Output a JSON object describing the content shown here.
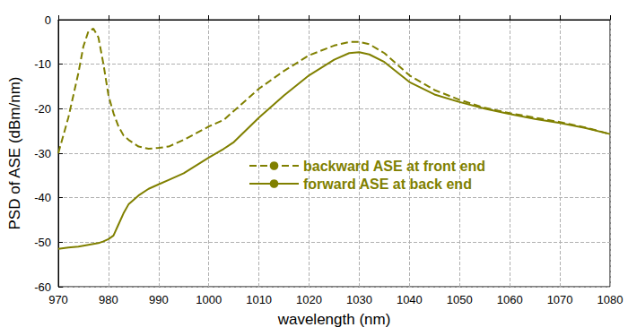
{
  "chart_data": {
    "type": "line",
    "x_label": "wavelength (nm)",
    "y_label": "PSD of ASE (dBm/nm)",
    "x": [
      970,
      972,
      974,
      975,
      976,
      977,
      978,
      979,
      980,
      981,
      982,
      983,
      984,
      986,
      988,
      990,
      992,
      995,
      1000,
      1003,
      1005,
      1010,
      1015,
      1020,
      1025,
      1028,
      1030,
      1032,
      1035,
      1040,
      1045,
      1050,
      1055,
      1060,
      1065,
      1070,
      1075,
      1080
    ],
    "series": [
      {
        "name": "backward ASE at front end",
        "color": "#808000",
        "line_style": "dashed",
        "values": [
          -30,
          -22,
          -12,
          -6,
          -2.6,
          -2,
          -4,
          -10,
          -17,
          -21,
          -24,
          -26,
          -27,
          -28.5,
          -29,
          -28.8,
          -28.5,
          -27,
          -24,
          -22.5,
          -20.5,
          -15.5,
          -11.5,
          -8,
          -5.8,
          -5,
          -5,
          -5.5,
          -7.5,
          -12.5,
          -15.8,
          -18,
          -19.8,
          -21,
          -22,
          -23,
          -24.2,
          -25.7
        ]
      },
      {
        "name": "forward ASE at back end",
        "color": "#808000",
        "line_style": "solid",
        "values": [
          -51.5,
          -51.2,
          -51,
          -50.8,
          -50.6,
          -50.4,
          -50.2,
          -49.8,
          -49.3,
          -48.5,
          -46,
          -43.5,
          -41.5,
          -39.5,
          -38,
          -37,
          -36,
          -34.5,
          -31,
          -29,
          -27.5,
          -22,
          -17,
          -12.5,
          -9,
          -7.5,
          -7.3,
          -7.8,
          -9.5,
          -14,
          -16.8,
          -18.5,
          -20,
          -21.2,
          -22.3,
          -23.2,
          -24.3,
          -25.7
        ]
      }
    ],
    "xlim": [
      970,
      1080
    ],
    "xticks": [
      970,
      980,
      990,
      1000,
      1010,
      1020,
      1030,
      1040,
      1050,
      1060,
      1070,
      1080
    ],
    "ylim": [
      -60,
      0
    ],
    "yticks": [
      -60,
      -50,
      -40,
      -30,
      -20,
      -10,
      0
    ],
    "grid": true,
    "legend": "right"
  }
}
